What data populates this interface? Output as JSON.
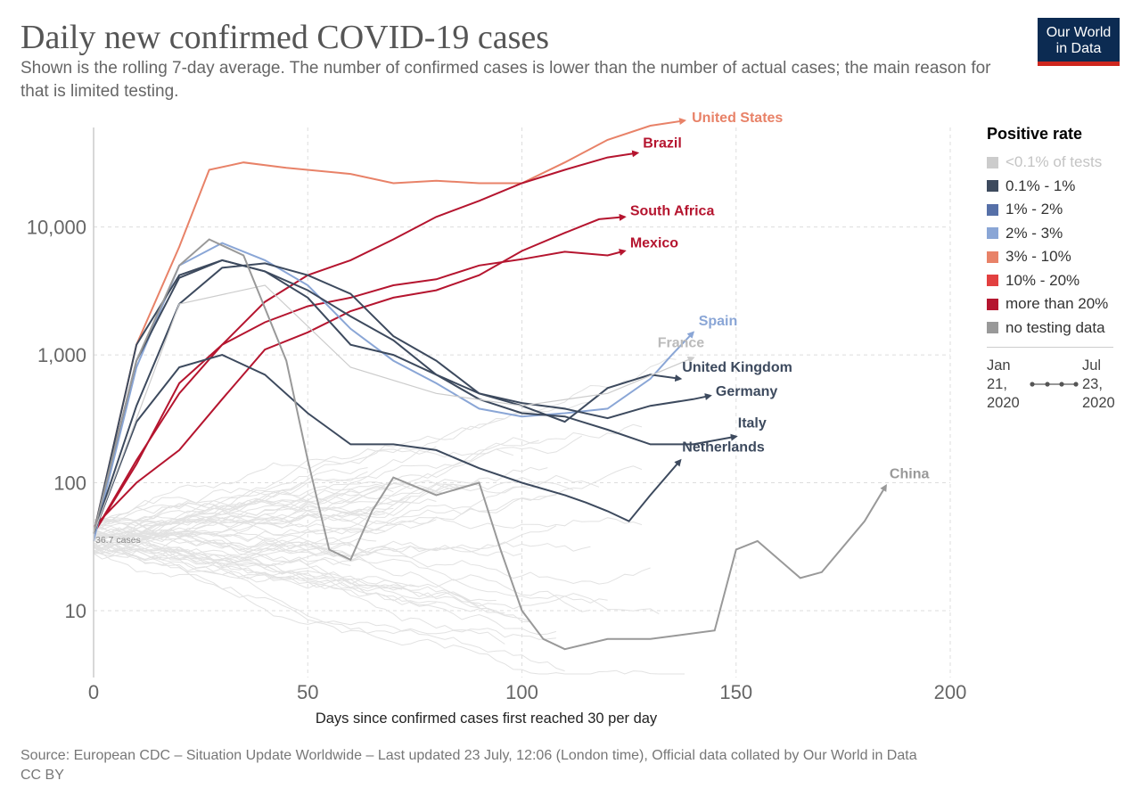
{
  "header": {
    "title": "Daily new confirmed COVID-19 cases",
    "subtitle": "Shown is the rolling 7-day average. The number of confirmed cases is lower than the number of actual cases; the main reason for that is limited testing.",
    "logo_line1": "Our World",
    "logo_line2": "in Data"
  },
  "legend": {
    "title": "Positive rate",
    "items": [
      {
        "label": "<0.1% of tests",
        "color": "#cccccc",
        "muted": true
      },
      {
        "label": "0.1% - 1%",
        "color": "#3d4a5e"
      },
      {
        "label": "1% - 2%",
        "color": "#5670a8"
      },
      {
        "label": "2% - 3%",
        "color": "#8aa6d6"
      },
      {
        "label": "3% - 10%",
        "color": "#e88268"
      },
      {
        "label": "10% - 20%",
        "color": "#e24040"
      },
      {
        "label": "more than 20%",
        "color": "#b5152f"
      },
      {
        "label": "no testing data",
        "color": "#999999"
      }
    ],
    "time_start": [
      "Jan",
      "21,",
      "2020"
    ],
    "time_end": [
      "Jul",
      "23,",
      "2020"
    ]
  },
  "source": {
    "line1": "Source: European CDC – Situation Update Worldwide – Last updated 23 July, 12:06 (London time), Official data collated by Our World in Data",
    "line2": "CC BY"
  },
  "chart_data": {
    "type": "line",
    "title": "Daily new confirmed COVID-19 cases",
    "xlabel": "Days since confirmed cases first reached 30 per day",
    "ylabel": "",
    "xlim": [
      0,
      200
    ],
    "ylim": [
      3,
      60000
    ],
    "y_scale": "log",
    "x_ticks": [
      0,
      50,
      100,
      150,
      200
    ],
    "y_ticks": [
      10,
      100,
      1000,
      10000
    ],
    "y_tick_labels": [
      "10",
      "100",
      "1,000",
      "10,000"
    ],
    "start_annotation": "36.7 cases",
    "series": [
      {
        "name": "United States",
        "color": "#e88268",
        "label_color": "#e88268",
        "x": [
          0,
          10,
          20,
          27,
          35,
          45,
          60,
          70,
          80,
          90,
          100,
          110,
          120,
          130,
          138
        ],
        "y": [
          40,
          1200,
          7000,
          28000,
          32000,
          29000,
          26000,
          22000,
          23000,
          22000,
          22000,
          32000,
          48000,
          62000,
          68000
        ]
      },
      {
        "name": "Brazil",
        "color": "#b5152f",
        "label_color": "#b5152f",
        "x": [
          0,
          10,
          20,
          30,
          40,
          50,
          60,
          70,
          80,
          90,
          100,
          110,
          120,
          127
        ],
        "y": [
          40,
          150,
          500,
          1200,
          2600,
          4200,
          5500,
          8000,
          12000,
          16000,
          22000,
          28000,
          35000,
          38000
        ]
      },
      {
        "name": "South Africa",
        "color": "#b5152f",
        "label_color": "#b5152f",
        "x": [
          0,
          10,
          20,
          30,
          40,
          50,
          60,
          70,
          80,
          90,
          100,
          110,
          118,
          124
        ],
        "y": [
          45,
          100,
          180,
          450,
          1100,
          1500,
          2200,
          2800,
          3200,
          4200,
          6500,
          9000,
          11500,
          12000
        ]
      },
      {
        "name": "Mexico",
        "color": "#b5152f",
        "label_color": "#b5152f",
        "x": [
          0,
          10,
          20,
          30,
          40,
          50,
          60,
          70,
          80,
          90,
          100,
          110,
          120,
          124
        ],
        "y": [
          40,
          140,
          600,
          1200,
          1800,
          2400,
          2800,
          3500,
          3900,
          5000,
          5600,
          6400,
          6000,
          6500
        ]
      },
      {
        "name": "Spain",
        "color": "#8aa6d6",
        "label_color": "#8aa6d6",
        "x": [
          0,
          10,
          20,
          30,
          40,
          50,
          60,
          70,
          80,
          90,
          100,
          110,
          120,
          130,
          135,
          140
        ],
        "y": [
          35,
          800,
          5000,
          7500,
          5500,
          3500,
          1600,
          900,
          600,
          380,
          330,
          350,
          380,
          650,
          1000,
          1500
        ]
      },
      {
        "name": "United Kingdom",
        "color": "#3d4a5e",
        "label_color": "#3d4a5e",
        "x": [
          0,
          10,
          20,
          30,
          40,
          50,
          60,
          70,
          80,
          90,
          100,
          110,
          120,
          130,
          137
        ],
        "y": [
          40,
          400,
          2500,
          4800,
          5200,
          4200,
          3000,
          1400,
          900,
          500,
          400,
          300,
          550,
          700,
          650
        ]
      },
      {
        "name": "Germany",
        "color": "#3d4a5e",
        "label_color": "#3d4a5e",
        "x": [
          0,
          10,
          20,
          30,
          40,
          50,
          60,
          70,
          80,
          90,
          100,
          110,
          120,
          130,
          140,
          144
        ],
        "y": [
          40,
          1200,
          4200,
          5500,
          4500,
          2800,
          1200,
          1000,
          700,
          500,
          420,
          380,
          320,
          400,
          450,
          480
        ]
      },
      {
        "name": "Italy",
        "color": "#3d4a5e",
        "label_color": "#3d4a5e",
        "x": [
          0,
          10,
          20,
          30,
          40,
          50,
          60,
          70,
          80,
          90,
          100,
          110,
          120,
          130,
          140,
          150
        ],
        "y": [
          40,
          900,
          4000,
          5500,
          4500,
          3200,
          2000,
          1300,
          700,
          450,
          350,
          330,
          260,
          200,
          200,
          230
        ]
      },
      {
        "name": "Netherlands",
        "color": "#3d4a5e",
        "label_color": "#3d4a5e",
        "x": [
          0,
          10,
          20,
          30,
          40,
          50,
          60,
          70,
          80,
          90,
          100,
          110,
          115,
          120,
          125,
          130,
          137
        ],
        "y": [
          40,
          300,
          800,
          1000,
          700,
          350,
          200,
          200,
          180,
          130,
          100,
          80,
          70,
          60,
          50,
          80,
          150
        ]
      },
      {
        "name": "France",
        "color": "#cccccc",
        "label_color": "#bbbbbb",
        "x": [
          0,
          20,
          40,
          60,
          80,
          100,
          120,
          140
        ],
        "y": [
          40,
          2500,
          3500,
          800,
          500,
          400,
          500,
          950
        ]
      },
      {
        "name": "China",
        "color": "#999999",
        "label_color": "#999999",
        "x": [
          0,
          10,
          20,
          27,
          35,
          45,
          50,
          55,
          60,
          65,
          70,
          80,
          90,
          95,
          100,
          105,
          110,
          120,
          130,
          145,
          150,
          155,
          165,
          170,
          180,
          185
        ],
        "y": [
          40,
          900,
          5000,
          8000,
          6000,
          900,
          150,
          30,
          25,
          60,
          110,
          80,
          100,
          30,
          10,
          6,
          5,
          6,
          6,
          7,
          30,
          35,
          18,
          20,
          50,
          95
        ]
      }
    ]
  }
}
